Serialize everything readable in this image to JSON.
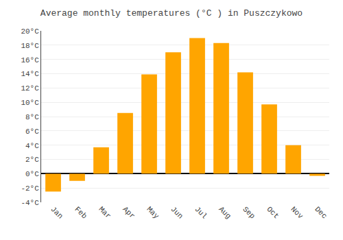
{
  "chart_data": {
    "type": "bar",
    "title": "Average monthly temperatures (°C ) in Puszczykowo",
    "categories": [
      "Jan",
      "Feb",
      "Mar",
      "Apr",
      "May",
      "Jun",
      "Jul",
      "Aug",
      "Sep",
      "Oct",
      "Nov",
      "Dec"
    ],
    "values": [
      -2.5,
      -1.0,
      3.7,
      8.5,
      13.9,
      17.0,
      19.0,
      18.3,
      14.2,
      9.7,
      4.0,
      -0.3
    ],
    "color": "#FFA500",
    "ylim": [
      -4,
      20
    ],
    "yticks": [
      {
        "value": -4,
        "label": "-4°C"
      },
      {
        "value": -2,
        "label": "-2°C"
      },
      {
        "value": 0,
        "label": "0°C"
      },
      {
        "value": 2,
        "label": "2°C"
      },
      {
        "value": 4,
        "label": "4°C"
      },
      {
        "value": 6,
        "label": "6°C"
      },
      {
        "value": 8,
        "label": "8°C"
      },
      {
        "value": 10,
        "label": "10°C"
      },
      {
        "value": 12,
        "label": "12°C"
      },
      {
        "value": 14,
        "label": "14°C"
      },
      {
        "value": 16,
        "label": "16°C"
      },
      {
        "value": 18,
        "label": "18°C"
      },
      {
        "value": 20,
        "label": "20°C"
      }
    ],
    "grid": true
  }
}
